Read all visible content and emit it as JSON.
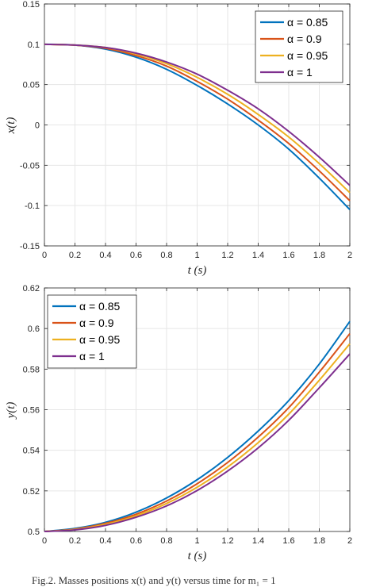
{
  "chart_data": [
    {
      "type": "line",
      "xlabel_var": "t",
      "xlabel_unit": "(s)",
      "ylabel": "x(t)",
      "xlim": [
        0,
        2
      ],
      "ylim": [
        -0.15,
        0.15
      ],
      "xticks": [
        "0",
        "0.2",
        "0.4",
        "0.6",
        "0.8",
        "1",
        "1.2",
        "1.4",
        "1.6",
        "1.8",
        "2"
      ],
      "yticks": [
        "-0.15",
        "-0.1",
        "-0.05",
        "0",
        "0.05",
        "0.1",
        "0.15"
      ],
      "legend_position": "top-right",
      "x": [
        0,
        0.2,
        0.4,
        0.6,
        0.8,
        1.0,
        1.2,
        1.4,
        1.6,
        1.8,
        2.0
      ],
      "series": [
        {
          "name": "α = 0.85",
          "color": "#0072BD",
          "values": [
            0.1,
            0.099,
            0.094,
            0.084,
            0.069,
            0.049,
            0.026,
            0.0,
            -0.03,
            -0.066,
            -0.105
          ]
        },
        {
          "name": "α = 0.9",
          "color": "#D95319",
          "values": [
            0.1,
            0.099,
            0.095,
            0.086,
            0.073,
            0.054,
            0.032,
            0.006,
            -0.023,
            -0.057,
            -0.094
          ]
        },
        {
          "name": "α = 0.95",
          "color": "#EDB120",
          "values": [
            0.1,
            0.099,
            0.096,
            0.088,
            0.076,
            0.059,
            0.038,
            0.013,
            -0.015,
            -0.048,
            -0.084
          ]
        },
        {
          "name": "α = 1",
          "color": "#7E2F8E",
          "values": [
            0.1,
            0.099,
            0.096,
            0.089,
            0.078,
            0.063,
            0.043,
            0.02,
            -0.008,
            -0.04,
            -0.075
          ]
        }
      ]
    },
    {
      "type": "line",
      "xlabel_var": "t",
      "xlabel_unit": "(s)",
      "ylabel": "y(t)",
      "xlim": [
        0,
        2
      ],
      "ylim": [
        0.5,
        0.62
      ],
      "xticks": [
        "0",
        "0.2",
        "0.4",
        "0.6",
        "0.8",
        "1",
        "1.2",
        "1.4",
        "1.6",
        "1.8",
        "2"
      ],
      "yticks": [
        "0.5",
        "0.52",
        "0.54",
        "0.56",
        "0.58",
        "0.6",
        "0.62"
      ],
      "legend_position": "top-left",
      "x": [
        0,
        0.2,
        0.4,
        0.6,
        0.8,
        1.0,
        1.2,
        1.4,
        1.6,
        1.8,
        2.0
      ],
      "series": [
        {
          "name": "α = 0.85",
          "color": "#0072BD",
          "values": [
            0.5,
            0.5015,
            0.5045,
            0.5095,
            0.5165,
            0.5255,
            0.5365,
            0.5495,
            0.5645,
            0.5825,
            0.6035
          ]
        },
        {
          "name": "α = 0.9",
          "color": "#D95319",
          "values": [
            0.5,
            0.5012,
            0.504,
            0.5085,
            0.515,
            0.5235,
            0.534,
            0.5465,
            0.561,
            0.5785,
            0.5975
          ]
        },
        {
          "name": "α = 0.95",
          "color": "#EDB120",
          "values": [
            0.5,
            0.501,
            0.5035,
            0.5077,
            0.5138,
            0.5218,
            0.5318,
            0.5438,
            0.5578,
            0.5745,
            0.5925
          ]
        },
        {
          "name": "α = 1",
          "color": "#7E2F8E",
          "values": [
            0.5,
            0.5008,
            0.503,
            0.507,
            0.5126,
            0.5202,
            0.5298,
            0.5412,
            0.5548,
            0.5708,
            0.5875
          ]
        }
      ]
    }
  ],
  "caption": "Fig.2.   Masses positions x(t) and y(t) versus time for m₁ = 1"
}
